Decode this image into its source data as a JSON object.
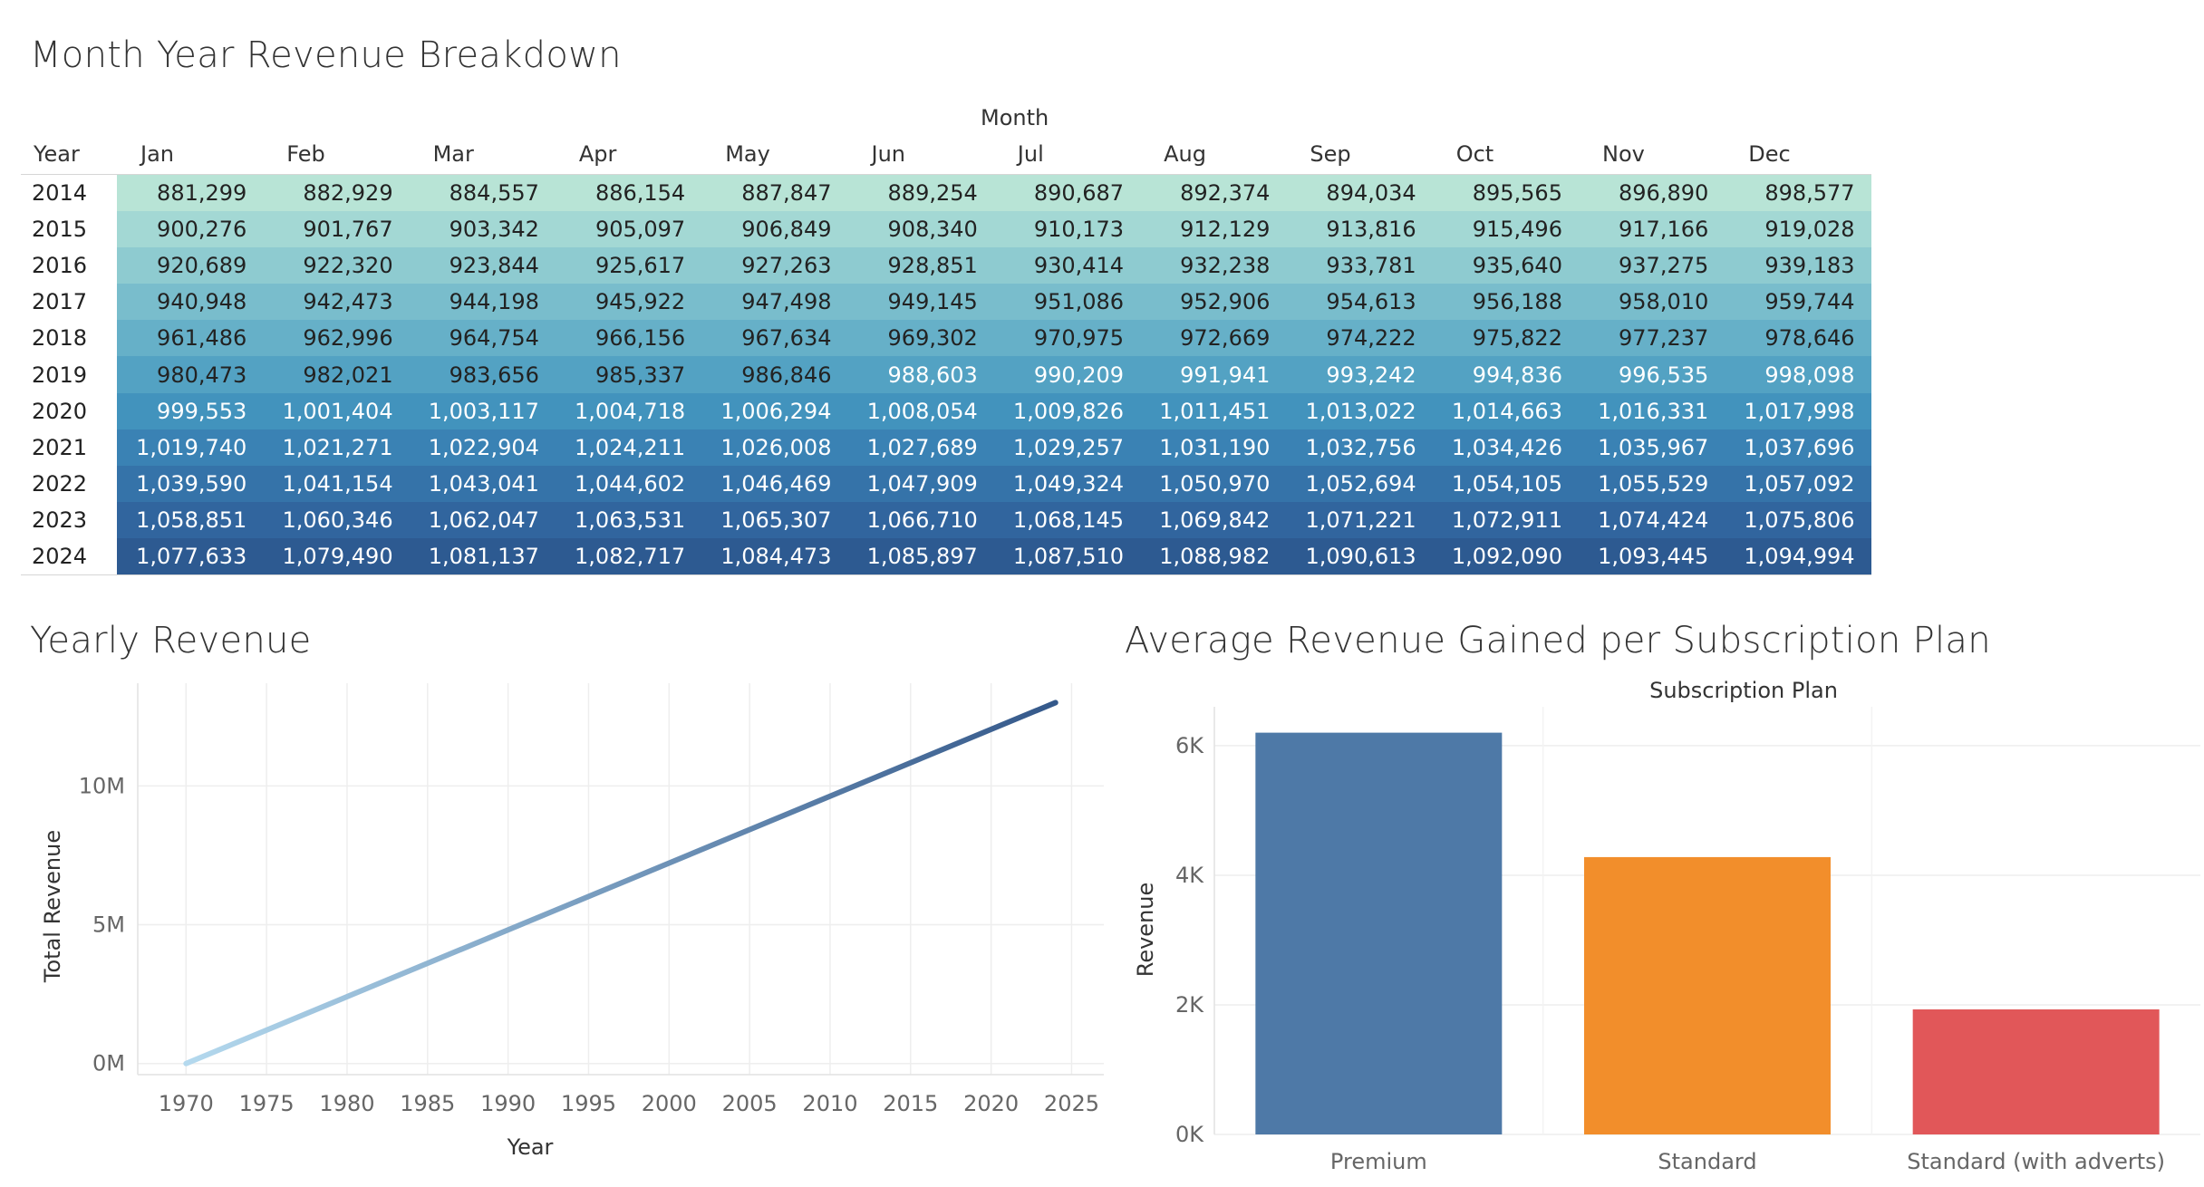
{
  "titles": {
    "heatmap": "Month Year Revenue Breakdown",
    "yearly": "Yearly Revenue",
    "bar": "Average Revenue Gained per Subscription Plan"
  },
  "chart_data": [
    {
      "type": "heatmap",
      "title": "Month Year Revenue Breakdown",
      "col_title": "Month",
      "row_title": "Year",
      "columns": [
        "Jan",
        "Feb",
        "Mar",
        "Apr",
        "May",
        "Jun",
        "Jul",
        "Aug",
        "Sep",
        "Oct",
        "Nov",
        "Dec"
      ],
      "rows": [
        "2014",
        "2015",
        "2016",
        "2017",
        "2018",
        "2019",
        "2020",
        "2021",
        "2022",
        "2023",
        "2024"
      ],
      "values": [
        [
          "881,299",
          "882,929",
          "884,557",
          "886,154",
          "887,847",
          "889,254",
          "890,687",
          "892,374",
          "894,034",
          "895,565",
          "896,890",
          "898,577"
        ],
        [
          "900,276",
          "901,767",
          "903,342",
          "905,097",
          "906,849",
          "908,340",
          "910,173",
          "912,129",
          "913,816",
          "915,496",
          "917,166",
          "919,028"
        ],
        [
          "920,689",
          "922,320",
          "923,844",
          "925,617",
          "927,263",
          "928,851",
          "930,414",
          "932,238",
          "933,781",
          "935,640",
          "937,275",
          "939,183"
        ],
        [
          "940,948",
          "942,473",
          "944,198",
          "945,922",
          "947,498",
          "949,145",
          "951,086",
          "952,906",
          "954,613",
          "956,188",
          "958,010",
          "959,744"
        ],
        [
          "961,486",
          "962,996",
          "964,754",
          "966,156",
          "967,634",
          "969,302",
          "970,975",
          "972,669",
          "974,222",
          "975,822",
          "977,237",
          "978,646"
        ],
        [
          "980,473",
          "982,021",
          "983,656",
          "985,337",
          "986,846",
          "988,603",
          "990,209",
          "991,941",
          "993,242",
          "994,836",
          "996,535",
          "998,098"
        ],
        [
          "999,553",
          "1,001,404",
          "1,003,117",
          "1,004,718",
          "1,006,294",
          "1,008,054",
          "1,009,826",
          "1,011,451",
          "1,013,022",
          "1,014,663",
          "1,016,331",
          "1,017,998"
        ],
        [
          "1,019,740",
          "1,021,271",
          "1,022,904",
          "1,024,211",
          "1,026,008",
          "1,027,689",
          "1,029,257",
          "1,031,190",
          "1,032,756",
          "1,034,426",
          "1,035,967",
          "1,037,696"
        ],
        [
          "1,039,590",
          "1,041,154",
          "1,043,041",
          "1,044,602",
          "1,046,469",
          "1,047,909",
          "1,049,324",
          "1,050,970",
          "1,052,694",
          "1,054,105",
          "1,055,529",
          "1,057,092"
        ],
        [
          "1,058,851",
          "1,060,346",
          "1,062,047",
          "1,063,531",
          "1,065,307",
          "1,066,710",
          "1,068,145",
          "1,069,842",
          "1,071,221",
          "1,072,911",
          "1,074,424",
          "1,075,806"
        ],
        [
          "1,077,633",
          "1,079,490",
          "1,081,137",
          "1,082,717",
          "1,084,473",
          "1,085,897",
          "1,087,510",
          "1,088,982",
          "1,090,613",
          "1,092,090",
          "1,093,445",
          "1,094,994"
        ]
      ],
      "row_colors": [
        "#b8e4d6",
        "#a3d8d4",
        "#8ecbd0",
        "#79bdcc",
        "#66b0c8",
        "#53a2c3",
        "#4293bd",
        "#3a82b4",
        "#3573a9",
        "#31659e",
        "#2d5a91"
      ],
      "row_text_colors": [
        "#222222",
        "#222222",
        "#222222",
        "#222222",
        "#222222",
        "mixed",
        "#ffffff",
        "#ffffff",
        "#ffffff",
        "#ffffff",
        "#ffffff"
      ]
    },
    {
      "type": "line",
      "title": "Yearly Revenue",
      "xlabel": "Year",
      "ylabel": "Total Revenue",
      "x": [
        1970,
        2024
      ],
      "y": [
        0,
        13000000
      ],
      "xlim": [
        1967,
        2027
      ],
      "ylim": [
        -400000,
        13700000
      ],
      "xticks": [
        "1970",
        "1975",
        "1980",
        "1985",
        "1990",
        "1995",
        "2000",
        "2005",
        "2010",
        "2015",
        "2020",
        "2025"
      ],
      "xtick_values": [
        1970,
        1975,
        1980,
        1985,
        1990,
        1995,
        2000,
        2005,
        2010,
        2015,
        2020,
        2025
      ],
      "yticks": [
        "0M",
        "5M",
        "10M"
      ],
      "ytick_values": [
        0,
        5000000,
        10000000
      ],
      "color_start": "#b4d9ee",
      "color_end": "#34588a",
      "grid": true
    },
    {
      "type": "bar",
      "title": "Average Revenue Gained per Subscription Plan",
      "top_label": "Subscription Plan",
      "ylabel": "Revenue",
      "categories": [
        "Premium",
        "Standard",
        "Standard (with adverts)"
      ],
      "values": [
        6200,
        4280,
        1930
      ],
      "colors": [
        "#4e79a7",
        "#f28e2b",
        "#e15759"
      ],
      "ylim": [
        0,
        6600
      ],
      "yticks": [
        "0K",
        "2K",
        "4K",
        "6K"
      ],
      "ytick_values": [
        0,
        2000,
        4000,
        6000
      ],
      "grid": true
    }
  ]
}
